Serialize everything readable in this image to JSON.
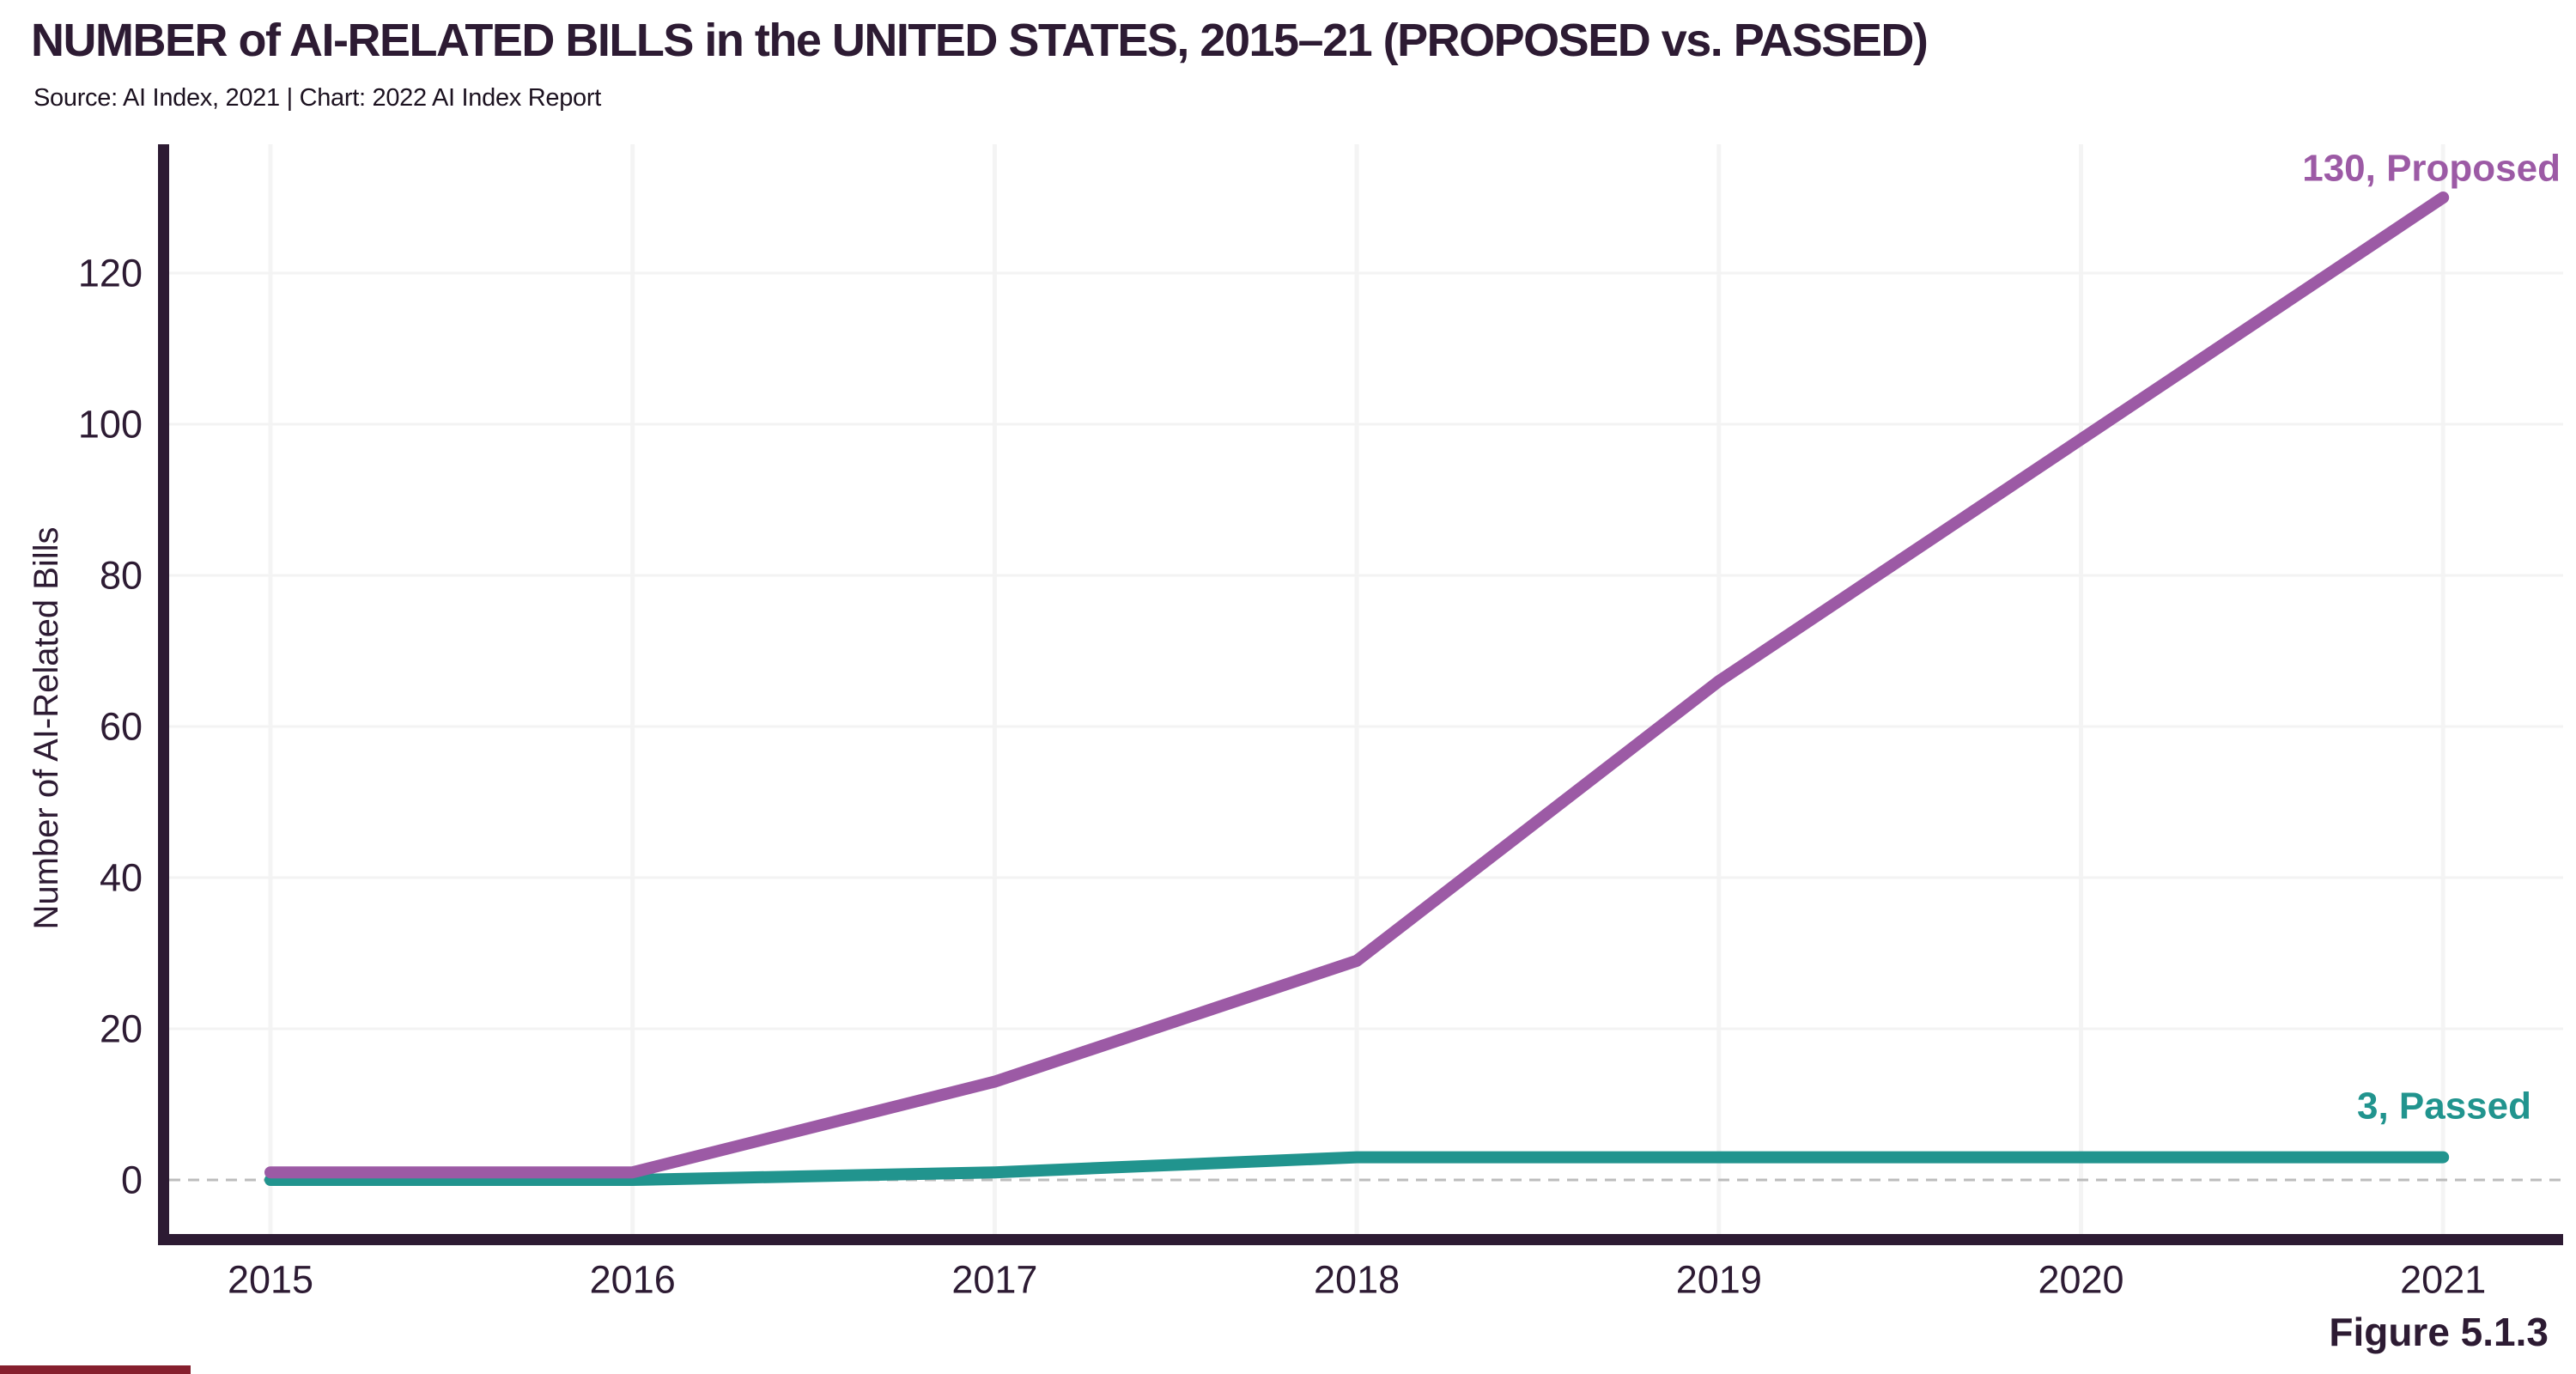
{
  "figure_label": "Figure 5.1.3",
  "colors": {
    "ink": "#2d1b33",
    "proposed": "#9c5aa5",
    "passed": "#21948e",
    "grid_h": "#f3f3f3",
    "grid_v": "#f4f4f4",
    "zero_line": "#bcbcbc",
    "accent_bar": "#861f2e",
    "background": "#ffffff"
  },
  "chart_data": {
    "type": "line",
    "title": "NUMBER of AI-RELATED BILLS in the UNITED STATES, 2015–21 (PROPOSED vs. PASSED)",
    "source_line": "Source: AI Index, 2021 | Chart: 2022 AI Index Report",
    "categories": [
      "2015",
      "2016",
      "2017",
      "2018",
      "2019",
      "2020",
      "2021"
    ],
    "series": [
      {
        "name": "Proposed",
        "values": [
          1,
          1,
          13,
          29,
          66,
          98,
          130
        ],
        "color": "#9c5aa5",
        "end_label": "130, Proposed"
      },
      {
        "name": "Passed",
        "values": [
          0,
          0,
          1,
          3,
          3,
          3,
          3
        ],
        "color": "#21948e",
        "end_label": "3, Passed"
      }
    ],
    "xlabel": "",
    "ylabel": "Number of AI-Related Bills",
    "yticks": [
      0,
      20,
      40,
      60,
      80,
      100,
      120
    ],
    "ylim": [
      0,
      137
    ],
    "grid": true,
    "zero_gridline_style": "dashed",
    "legend_position": "end-of-line-labels"
  }
}
